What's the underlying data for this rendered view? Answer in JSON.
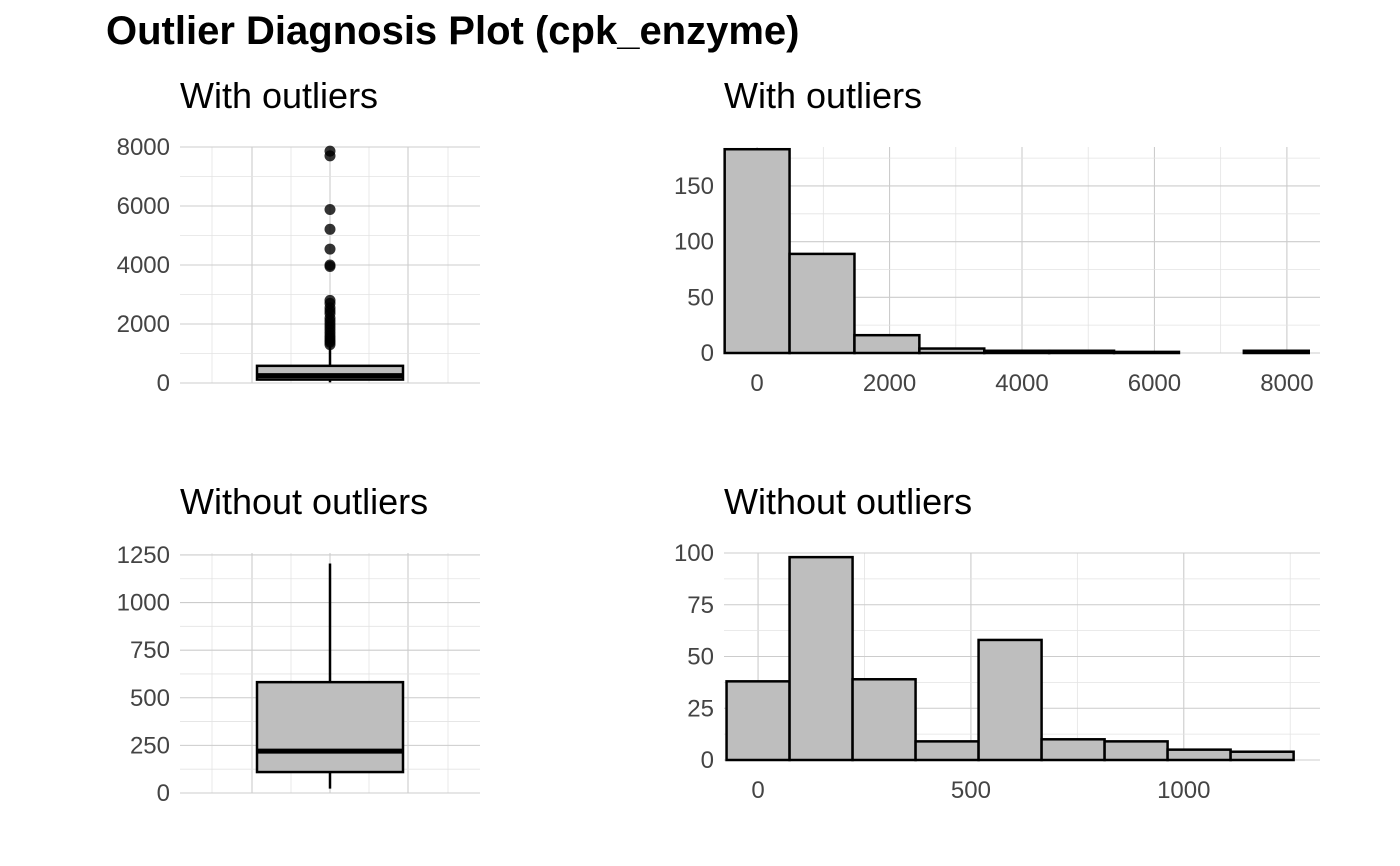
{
  "title": "Outlier Diagnosis Plot (cpk_enzyme)",
  "chart_data": [
    {
      "type": "box",
      "title": "With outliers",
      "xlabel": "",
      "ylabel": "",
      "ylim": [
        0,
        8000
      ],
      "yticks": [
        0,
        2000,
        4000,
        6000,
        8000
      ],
      "grid": true,
      "stats": {
        "min": 23,
        "q1": 116,
        "median": 250,
        "q3": 582,
        "max": 1260
      },
      "outliers": [
        1300,
        1380,
        1440,
        1520,
        1600,
        1700,
        1800,
        1900,
        2000,
        2100,
        2200,
        2350,
        2450,
        2550,
        2700,
        2800,
        3950,
        4000,
        4540,
        5210,
        5880,
        7700,
        7860
      ]
    },
    {
      "type": "bar",
      "title": "With outliers",
      "xlabel": "",
      "ylabel": "",
      "xlim": [
        -500,
        8500
      ],
      "ylim": [
        0,
        185
      ],
      "xticks": [
        0,
        2000,
        4000,
        6000,
        8000
      ],
      "yticks": [
        0,
        50,
        100,
        150
      ],
      "grid": true,
      "bin_width": 980,
      "bin_centers": [
        0,
        980,
        1960,
        2940,
        3920,
        4900,
        5880,
        6860,
        7840
      ],
      "values": [
        183,
        89,
        16,
        4,
        2,
        2,
        1,
        0,
        2
      ]
    },
    {
      "type": "box",
      "title": "Without outliers",
      "xlabel": "",
      "ylabel": "",
      "ylim": [
        0,
        1260
      ],
      "yticks": [
        0,
        250,
        500,
        750,
        1000,
        1250
      ],
      "grid": true,
      "stats": {
        "min": 23,
        "q1": 110,
        "median": 220,
        "q3": 582,
        "max": 1205
      },
      "outliers": []
    },
    {
      "type": "bar",
      "title": "Without outliers",
      "xlabel": "",
      "ylabel": "",
      "xlim": [
        -80,
        1320
      ],
      "ylim": [
        0,
        100
      ],
      "xticks": [
        0,
        500,
        1000
      ],
      "yticks": [
        0,
        25,
        50,
        75,
        100
      ],
      "grid": true,
      "bin_width": 148,
      "bin_centers": [
        0,
        148,
        296,
        444,
        592,
        740,
        888,
        1036,
        1184
      ],
      "values": [
        38,
        98,
        39,
        9,
        58,
        10,
        9,
        5,
        4
      ]
    }
  ]
}
